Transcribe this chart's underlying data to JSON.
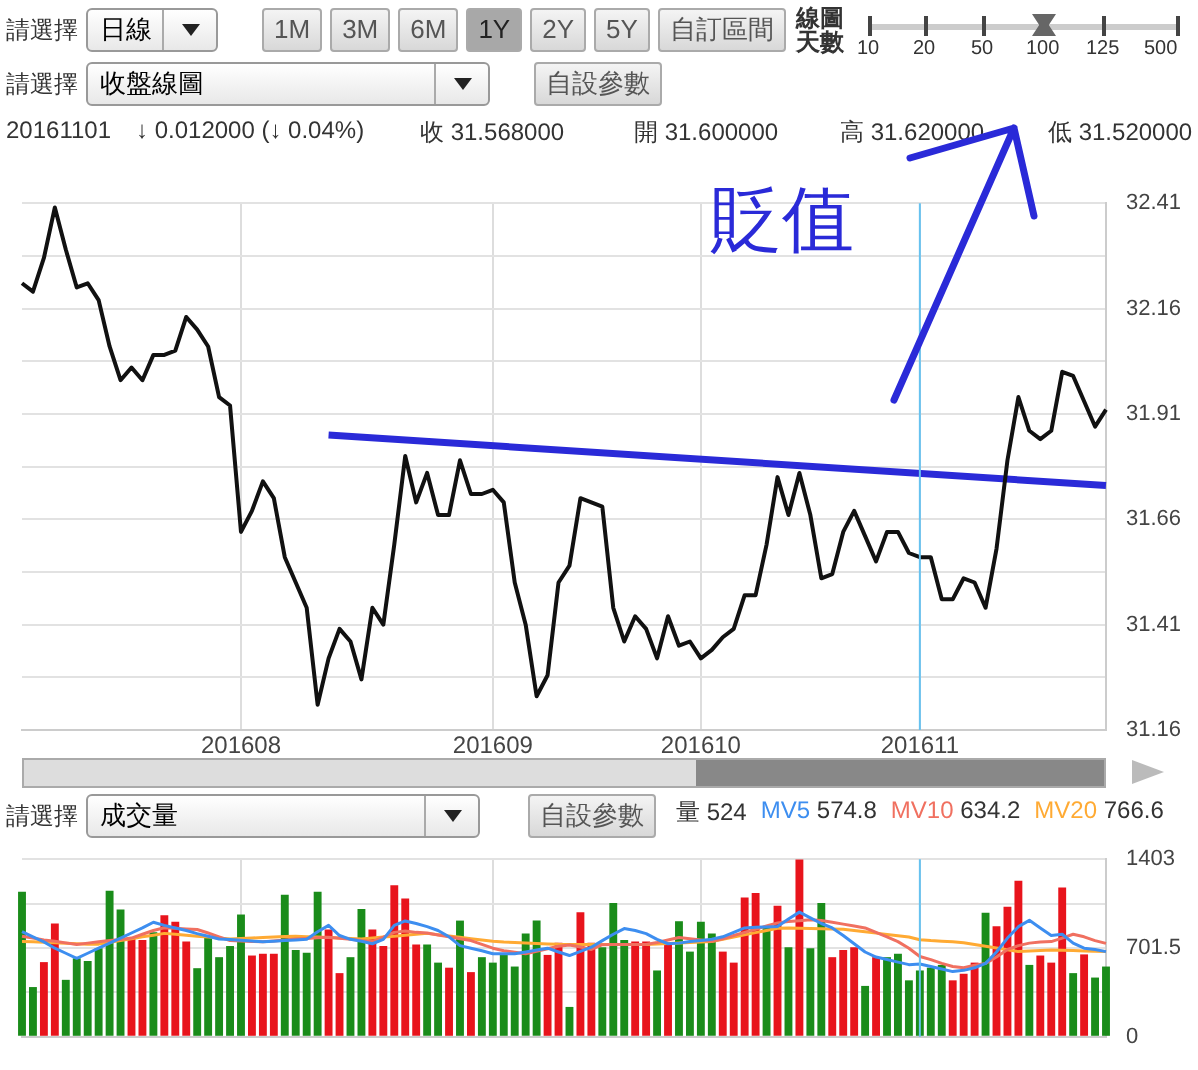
{
  "chart_data": [
    {
      "type": "line",
      "categories": [
        null,
        null,
        null,
        null,
        null,
        null,
        null,
        null,
        null,
        null,
        null,
        null,
        null,
        null,
        null,
        null,
        null,
        null,
        null,
        null,
        "201608",
        null,
        null,
        null,
        null,
        null,
        null,
        null,
        null,
        null,
        null,
        null,
        null,
        null,
        null,
        null,
        null,
        null,
        null,
        null,
        null,
        null,
        null,
        "201609",
        null,
        null,
        null,
        null,
        null,
        null,
        null,
        null,
        null,
        null,
        null,
        null,
        null,
        null,
        null,
        null,
        null,
        null,
        "201610",
        null,
        null,
        null,
        null,
        null,
        null,
        null,
        null,
        null,
        null,
        null,
        null,
        null,
        null,
        null,
        null,
        null,
        null,
        null,
        "201611",
        null,
        null,
        null,
        null,
        null,
        null,
        null,
        null,
        null,
        null,
        null,
        null,
        null,
        null,
        null,
        null,
        null
      ],
      "series": [
        {
          "color": "#111111",
          "values": [
            32.22,
            32.2,
            32.28,
            32.4,
            32.3,
            32.21,
            32.22,
            32.18,
            32.07,
            31.99,
            32.02,
            31.99,
            32.05,
            32.05,
            32.06,
            32.14,
            32.11,
            32.07,
            31.95,
            31.93,
            31.63,
            31.68,
            31.75,
            31.71,
            31.57,
            31.51,
            31.45,
            31.22,
            31.33,
            31.4,
            31.37,
            31.28,
            31.45,
            31.41,
            31.6,
            31.81,
            31.7,
            31.77,
            31.67,
            31.67,
            31.8,
            31.72,
            31.72,
            31.73,
            31.7,
            31.51,
            31.41,
            31.24,
            31.29,
            31.51,
            31.55,
            31.71,
            31.7,
            31.69,
            31.45,
            31.37,
            31.43,
            31.4,
            31.33,
            31.43,
            31.36,
            31.37,
            31.33,
            31.35,
            31.38,
            31.4,
            31.48,
            31.48,
            31.6,
            31.76,
            31.67,
            31.77,
            31.67,
            31.52,
            31.53,
            31.63,
            31.68,
            31.62,
            31.56,
            31.63,
            31.63,
            31.58,
            31.57,
            31.57,
            31.47,
            31.47,
            31.52,
            31.51,
            31.45,
            31.59,
            31.8,
            31.95,
            31.87,
            31.85,
            31.87,
            32.01,
            32.0,
            31.94,
            31.88,
            31.92
          ]
        },
        {
          "color": "#2a2ad8",
          "values": [
            null,
            null,
            null,
            null,
            null,
            null,
            null,
            null,
            null,
            null,
            null,
            null,
            null,
            null,
            null,
            null,
            null,
            null,
            null,
            null,
            null,
            null,
            null,
            null,
            null,
            null,
            null,
            null,
            31.86,
            null,
            null,
            null,
            null,
            null,
            null,
            null,
            null,
            null,
            null,
            null,
            null,
            null,
            null,
            null,
            null,
            null,
            null,
            null,
            null,
            null,
            null,
            null,
            null,
            null,
            null,
            null,
            null,
            null,
            null,
            null,
            null,
            null,
            null,
            null,
            null,
            null,
            null,
            null,
            null,
            null,
            null,
            null,
            null,
            null,
            null,
            null,
            null,
            null,
            null,
            null,
            null,
            null,
            null,
            null,
            null,
            null,
            null,
            null,
            null,
            null,
            null,
            null,
            null,
            null,
            null,
            null,
            null,
            null,
            null,
            31.74
          ]
        }
      ],
      "ylim": [
        31.16,
        32.41
      ],
      "yticks": [
        31.16,
        {
          "value": 31.285,
          "label": null
        },
        31.41,
        {
          "value": 31.535,
          "label": null
        },
        31.66,
        {
          "value": 31.785,
          "label": null
        },
        31.91,
        {
          "value": 32.035,
          "label": null
        },
        32.16,
        {
          "value": 32.285,
          "label": null
        },
        32.41
      ],
      "grid": true,
      "marker": "none",
      "ref_lines": [
        {
          "axis": "x",
          "value": "201611",
          "color": "#66c2f0"
        }
      ],
      "annotations": [
        "請選擇",
        "日線",
        "1M",
        "3M",
        "6M",
        "1Y",
        "2Y",
        "5Y",
        "自訂區間",
        "線圖天數",
        "10",
        "20",
        "50",
        "100",
        "125",
        "500",
        "請選擇",
        "收盤線圖",
        "自設參數",
        "20161101",
        "↓ 0.012000 (↓ 0.04%)",
        "收 31.568000",
        "開 31.600000",
        "高 31.620000",
        "低 31.520000",
        "貶值"
      ]
    },
    {
      "type": "bar",
      "categories": [
        null,
        null,
        null,
        null,
        null,
        null,
        null,
        null,
        null,
        null,
        null,
        null,
        null,
        null,
        null,
        null,
        null,
        null,
        null,
        null,
        "201608",
        null,
        null,
        null,
        null,
        null,
        null,
        null,
        null,
        null,
        null,
        null,
        null,
        null,
        null,
        null,
        null,
        null,
        null,
        null,
        null,
        null,
        null,
        "201609",
        null,
        null,
        null,
        null,
        null,
        null,
        null,
        null,
        null,
        null,
        null,
        null,
        null,
        null,
        null,
        null,
        null,
        null,
        "201610",
        null,
        null,
        null,
        null,
        null,
        null,
        null,
        null,
        null,
        null,
        null,
        null,
        null,
        null,
        null,
        null,
        null,
        null,
        null,
        "201611",
        null,
        null,
        null,
        null,
        null,
        null,
        null,
        null,
        null,
        null,
        null,
        null,
        null,
        null,
        null,
        null,
        null
      ],
      "series": [
        {
          "values": [
            1145,
            393,
            590,
            896,
            450,
            620,
            599,
            699,
            1154,
            1005,
            773,
            765,
            826,
            961,
            909,
            752,
            542,
            791,
            629,
            717,
            966,
            642,
            656,
            656,
            1123,
            686,
            664,
            1145,
            848,
            503,
            629,
            1009,
            848,
            717,
            1197,
            1093,
            730,
            730,
            586,
            546,
            918,
            511,
            629,
            586,
            656,
            555,
            817,
            918,
            647,
            743,
            236,
            983,
            742,
            708,
            1057,
            765,
            752,
            752,
            524,
            743,
            913,
            673,
            909,
            817,
            673,
            586,
            1101,
            1136,
            870,
            1036,
            708,
            1400,
            699,
            1057,
            629,
            686,
            708,
            402,
            629,
            629,
            656,
            446,
            524,
            546,
            568,
            446,
            498,
            586,
            979,
            874,
            1027,
            1232,
            568,
            642,
            586,
            1180,
            503,
            651,
            468,
            555
          ],
          "colors": [
            "#1a8c1a",
            "#1a8c1a",
            "#e8141c",
            "#e8141c",
            "#1a8c1a",
            "#1a8c1a",
            "#1a8c1a",
            "#1a8c1a",
            "#1a8c1a",
            "#1a8c1a",
            "#e8141c",
            "#e8141c",
            "#1a8c1a",
            "#e8141c",
            "#e8141c",
            "#e8141c",
            "#1a8c1a",
            "#1a8c1a",
            "#1a8c1a",
            "#1a8c1a",
            "#1a8c1a",
            "#e8141c",
            "#e8141c",
            "#e8141c",
            "#1a8c1a",
            "#1a8c1a",
            "#1a8c1a",
            "#1a8c1a",
            "#e8141c",
            "#e8141c",
            "#1a8c1a",
            "#1a8c1a",
            "#e8141c",
            "#e8141c",
            "#e8141c",
            "#e8141c",
            "#e8141c",
            "#1a8c1a",
            "#1a8c1a",
            "#e8141c",
            "#1a8c1a",
            "#e8141c",
            "#1a8c1a",
            "#1a8c1a",
            "#1a8c1a",
            "#1a8c1a",
            "#1a8c1a",
            "#1a8c1a",
            "#e8141c",
            "#e8141c",
            "#1a8c1a",
            "#e8141c",
            "#e8141c",
            "#1a8c1a",
            "#1a8c1a",
            "#1a8c1a",
            "#e8141c",
            "#e8141c",
            "#1a8c1a",
            "#e8141c",
            "#1a8c1a",
            "#1a8c1a",
            "#1a8c1a",
            "#1a8c1a",
            "#e8141c",
            "#e8141c",
            "#e8141c",
            "#e8141c",
            "#1a8c1a",
            "#e8141c",
            "#1a8c1a",
            "#e8141c",
            "#1a8c1a",
            "#1a8c1a",
            "#e8141c",
            "#e8141c",
            "#e8141c",
            "#1a8c1a",
            "#e8141c",
            "#1a8c1a",
            "#1a8c1a",
            "#1a8c1a",
            "#1a8c1a",
            "#1a8c1a",
            "#1a8c1a",
            "#e8141c",
            "#e8141c",
            "#e8141c",
            "#1a8c1a",
            "#e8141c",
            "#e8141c",
            "#e8141c",
            "#1a8c1a",
            "#e8141c",
            "#e8141c",
            "#e8141c",
            "#1a8c1a",
            "#e8141c",
            "#1a8c1a",
            "#1a8c1a"
          ]
        },
        {
          "type": "line",
          "name": "MV5",
          "color": "#3d8ef0",
          "values": [
            830,
            790,
            750,
            700,
            660,
            620,
            660,
            700,
            740,
            780,
            820,
            860,
            905,
            880,
            860,
            840,
            815,
            795,
            773,
            768,
            762,
            756,
            750,
            755,
            760,
            765,
            770,
            830,
            880,
            800,
            770,
            755,
            735,
            770,
            880,
            915,
            895,
            870,
            840,
            790,
            720,
            700,
            680,
            656,
            656,
            656,
            670,
            685,
            700,
            670,
            642,
            675,
            708,
            760,
            810,
            855,
            840,
            815,
            770,
            735,
            740,
            752,
            760,
            770,
            790,
            825,
            860,
            865,
            868,
            872,
            930,
            985,
            940,
            895,
            860,
            800,
            735,
            670,
            630,
            610,
            590,
            570,
            575,
            555,
            535,
            515,
            525,
            545,
            580,
            670,
            780,
            870,
            920,
            860,
            800,
            810,
            740,
            700,
            690,
            673
          ]
        },
        {
          "type": "line",
          "name": "MV10",
          "color": "#f07060",
          "values": [
            795,
            780,
            765,
            755,
            742,
            730,
            740,
            750,
            760,
            768,
            780,
            810,
            840,
            861,
            857,
            852,
            848,
            820,
            790,
            760,
            757,
            753,
            750,
            757,
            765,
            772,
            777,
            782,
            787,
            778,
            770,
            760,
            752,
            787,
            825,
            835,
            825,
            820,
            805,
            790,
            775,
            760,
            730,
            700,
            680,
            668,
            656,
            675,
            695,
            715,
            725,
            710,
            690,
            728,
            730,
            730,
            730,
            730,
            745,
            765,
            785,
            775,
            765,
            755,
            775,
            800,
            825,
            850,
            875,
            900,
            910,
            917,
            925,
            918,
            905,
            890,
            875,
            860,
            825,
            790,
            752,
            700,
            634,
            610,
            580,
            555,
            545,
            565,
            580,
            630,
            690,
            720,
            740,
            748,
            752,
            780,
            810,
            790,
            760,
            738
          ]
        },
        {
          "type": "line",
          "name": "MV20",
          "color": "#ffaa33",
          "values": [
            752,
            750,
            747,
            743,
            740,
            736,
            732,
            732,
            746,
            760,
            775,
            790,
            803,
            817,
            810,
            802,
            795,
            788,
            780,
            773,
            777,
            780,
            784,
            788,
            792,
            795,
            791,
            788,
            784,
            780,
            777,
            773,
            780,
            788,
            795,
            802,
            810,
            817,
            807,
            796,
            786,
            775,
            765,
            755,
            748,
            745,
            741,
            738,
            734,
            731,
            730,
            730,
            730,
            730,
            730,
            730,
            730,
            730,
            734,
            738,
            741,
            745,
            748,
            752,
            770,
            788,
            805,
            823,
            840,
            858,
            859,
            857,
            855,
            853,
            851,
            849,
            839,
            829,
            819,
            808,
            798,
            788,
            767,
            760,
            755,
            750,
            743,
            729,
            715,
            701,
            687,
            673,
            677,
            681,
            686,
            683,
            681,
            678,
            676,
            673
          ]
        }
      ],
      "ylim": [
        0,
        1403
      ],
      "yticks": [
        0,
        {
          "value": 350.75,
          "label": null
        },
        701.5,
        {
          "value": 1052.25,
          "label": null
        },
        1403
      ],
      "grid": true,
      "tick_labels": "y",
      "legend": "top",
      "marker": "none",
      "ref_lines": [
        {
          "axis": "x",
          "value": "201611",
          "color": "#66c2f0"
        }
      ],
      "annotations": [
        "請選擇",
        "成交量",
        "自設參數",
        "量 524",
        "574.8",
        "634.2",
        "766.6"
      ]
    }
  ]
}
